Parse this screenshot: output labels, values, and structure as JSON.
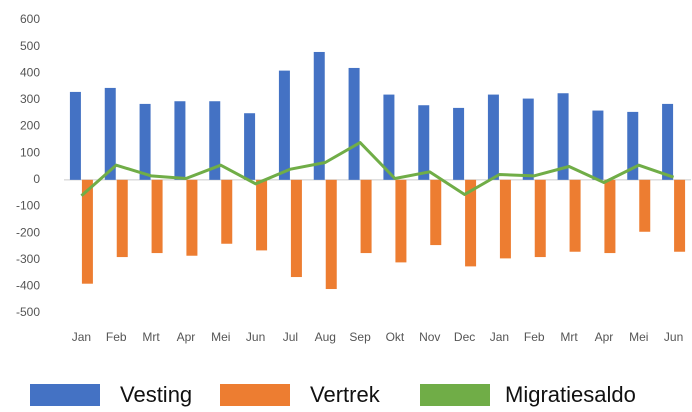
{
  "chart_data": {
    "type": "bar",
    "categories": [
      "Jan",
      "Feb",
      "Mrt",
      "Apr",
      "Mei",
      "Jun",
      "Jul",
      "Aug",
      "Sep",
      "Okt",
      "Nov",
      "Dec",
      "Jan",
      "Feb",
      "Mrt",
      "Apr",
      "Mei",
      "Jun"
    ],
    "series": [
      {
        "name": "Vesting",
        "color": "#4472c4",
        "values": [
          330,
          345,
          285,
          295,
          295,
          250,
          410,
          480,
          420,
          320,
          280,
          270,
          320,
          305,
          325,
          260,
          255,
          285
        ]
      },
      {
        "name": "Vertrek",
        "color": "#ed7d31",
        "values": [
          -390,
          -290,
          -275,
          -285,
          -240,
          -265,
          -365,
          -410,
          -275,
          -310,
          -245,
          -325,
          -295,
          -290,
          -270,
          -275,
          -195,
          -270
        ]
      },
      {
        "name": "Migratiesaldo",
        "color": "#70ad47",
        "type": "line",
        "values": [
          -60,
          55,
          15,
          5,
          55,
          -15,
          40,
          65,
          140,
          5,
          30,
          -55,
          20,
          15,
          50,
          -10,
          55,
          10
        ]
      }
    ],
    "ylim": [
      -500,
      600
    ],
    "yticks": [
      -500,
      -400,
      -300,
      -200,
      -100,
      0,
      100,
      200,
      300,
      400,
      500,
      600
    ],
    "grid": false
  }
}
